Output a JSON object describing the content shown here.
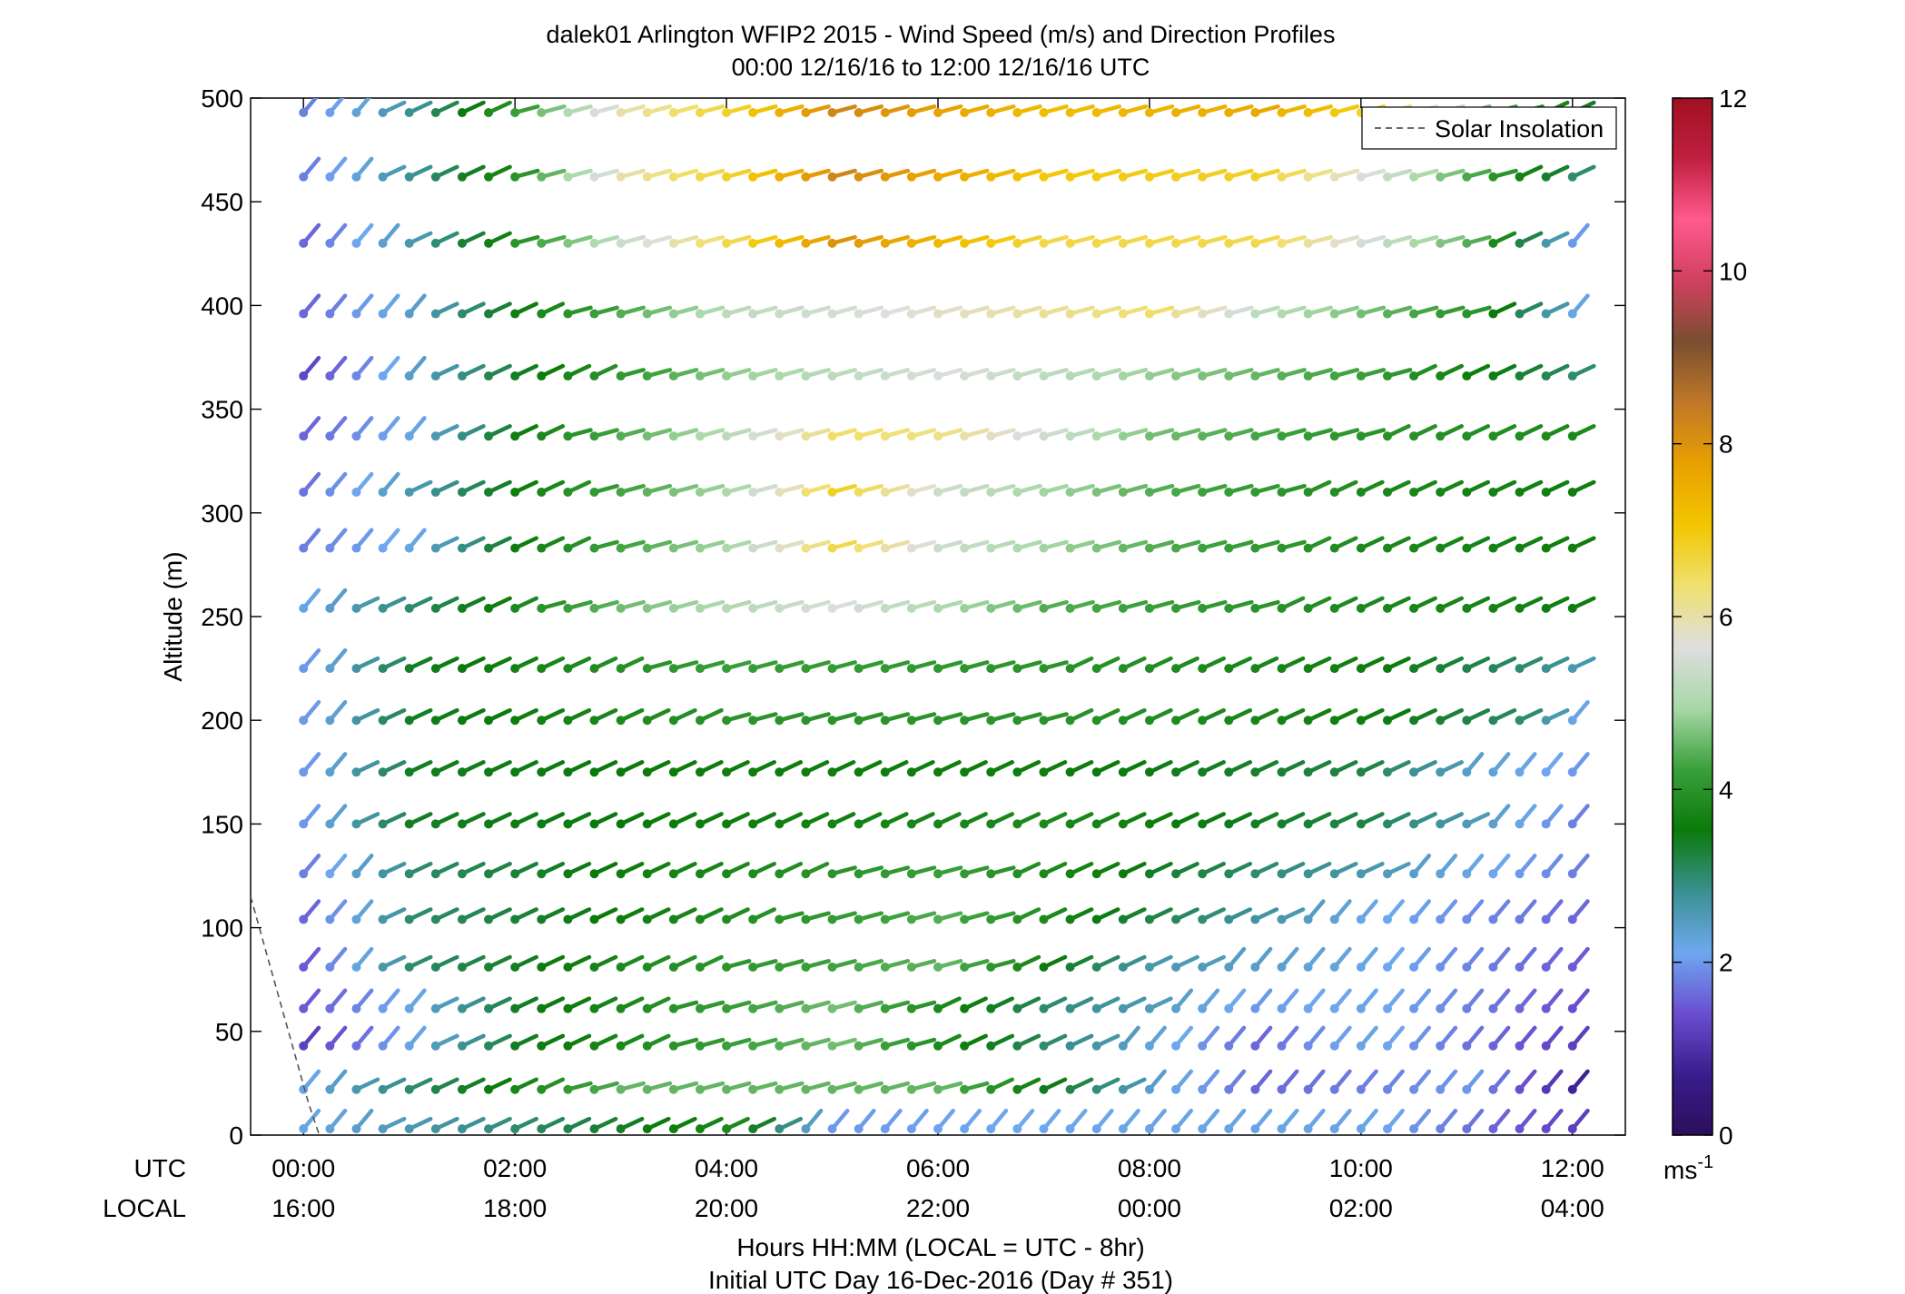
{
  "chart_data": {
    "type": "wind-barb-profile",
    "title": "dalek01 Arlington WFIP2 2015 - Wind Speed (m/s) and Direction Profiles",
    "subtitle": "00:00 12/16/16 to 12:00 12/16/16  UTC",
    "ylabel": "Altitude (m)",
    "xlabel": "Hours HH:MM  (LOCAL = UTC - 8hr)",
    "xlabel2": "Initial UTC Day 16-Dec-2016 (Day # 351)",
    "row_label_utc": "UTC",
    "row_label_local": "LOCAL",
    "xlim_hours": [
      -0.5,
      12.5
    ],
    "ylim": [
      0,
      500
    ],
    "yticks": [
      0,
      50,
      100,
      150,
      200,
      250,
      300,
      350,
      400,
      450,
      500
    ],
    "xticks_utc": [
      "00:00",
      "02:00",
      "04:00",
      "06:00",
      "08:00",
      "10:00",
      "12:00"
    ],
    "xticks_local": [
      "16:00",
      "18:00",
      "20:00",
      "22:00",
      "00:00",
      "02:00",
      "04:00"
    ],
    "legend": {
      "label": "Solar Insolation",
      "placement": "top-right"
    },
    "colorbar": {
      "min": 0,
      "max": 12,
      "ticks": [
        0,
        2,
        4,
        6,
        8,
        10,
        12
      ],
      "unit_base": "ms",
      "unit_exp": "-1",
      "colors": [
        "#2b0f5c",
        "#3a1c8c",
        "#6a4fd0",
        "#6ea8f0",
        "#3a9090",
        "#0a7a0a",
        "#3aa03a",
        "#a8d8a8",
        "#dedede",
        "#f0e070",
        "#f2c600",
        "#e8a000",
        "#c07828",
        "#7a4e30",
        "#d04060",
        "#ff5a8c",
        "#c02040",
        "#a01020"
      ]
    },
    "solar_insolation_line": [
      [
        -0.5,
        115
      ],
      [
        0.05,
        15
      ],
      [
        0.15,
        0
      ]
    ],
    "heights": [
      3,
      22,
      43,
      61,
      81,
      104,
      126,
      150,
      175,
      200,
      225,
      254,
      283,
      310,
      337,
      366,
      396,
      430,
      462,
      493
    ],
    "times_hours": [
      0.0,
      0.25,
      0.5,
      0.75,
      1.0,
      1.25,
      1.5,
      1.75,
      2.0,
      2.25,
      2.5,
      2.75,
      3.0,
      3.25,
      3.5,
      3.75,
      4.0,
      4.25,
      4.5,
      4.75,
      5.0,
      5.25,
      5.5,
      5.75,
      6.0,
      6.25,
      6.5,
      6.75,
      7.0,
      7.25,
      7.5,
      7.75,
      8.0,
      8.25,
      8.5,
      8.75,
      9.0,
      9.25,
      9.5,
      9.75,
      10.0,
      10.25,
      10.5,
      10.75,
      11.0,
      11.25,
      11.5,
      11.75,
      12.0
    ],
    "speed_profiles": [
      {
        "height": 3,
        "speed_knots_ms": [
          [
            0,
            2.2
          ],
          [
            4,
            3.8
          ],
          [
            5,
            2
          ],
          [
            8,
            2.2
          ],
          [
            10,
            2.2
          ],
          [
            12,
            1.2
          ]
        ]
      },
      {
        "height": 22,
        "speed_knots_ms": [
          [
            0,
            2.2
          ],
          [
            1,
            3
          ],
          [
            3,
            4.5
          ],
          [
            6,
            4.5
          ],
          [
            8,
            2.4
          ],
          [
            9,
            1.6
          ],
          [
            11,
            2
          ],
          [
            12,
            0.8
          ]
        ]
      },
      {
        "height": 43,
        "speed_knots_ms": [
          [
            0,
            1.2
          ],
          [
            1,
            2.2
          ],
          [
            2,
            3.4
          ],
          [
            5,
            4.6
          ],
          [
            7,
            3
          ],
          [
            9,
            1.6
          ],
          [
            10,
            2.2
          ],
          [
            12,
            1.2
          ]
        ]
      },
      {
        "height": 61,
        "speed_knots_ms": [
          [
            0,
            1.5
          ],
          [
            1,
            2.2
          ],
          [
            2,
            3.4
          ],
          [
            5,
            4.6
          ],
          [
            7,
            3
          ],
          [
            9,
            2
          ],
          [
            10,
            2.2
          ],
          [
            12,
            1.4
          ]
        ]
      },
      {
        "height": 81,
        "speed_knots_ms": [
          [
            0,
            1.5
          ],
          [
            1,
            3
          ],
          [
            3,
            3.8
          ],
          [
            6,
            4.5
          ],
          [
            8,
            2.6
          ],
          [
            10,
            2.2
          ],
          [
            12,
            1.5
          ]
        ]
      },
      {
        "height": 104,
        "speed_knots_ms": [
          [
            0,
            1.6
          ],
          [
            1,
            3
          ],
          [
            3,
            3.6
          ],
          [
            6,
            4.4
          ],
          [
            8,
            3.2
          ],
          [
            10,
            2.2
          ],
          [
            12,
            1.6
          ]
        ]
      },
      {
        "height": 126,
        "speed_knots_ms": [
          [
            0,
            1.8
          ],
          [
            1,
            3
          ],
          [
            3,
            3.6
          ],
          [
            6,
            4.2
          ],
          [
            9,
            3
          ],
          [
            11,
            2.2
          ],
          [
            12,
            1.8
          ]
        ]
      },
      {
        "height": 150,
        "speed_knots_ms": [
          [
            0,
            2
          ],
          [
            1,
            3.4
          ],
          [
            4,
            3.6
          ],
          [
            7,
            3.8
          ],
          [
            10,
            3.2
          ],
          [
            11.5,
            2.2
          ],
          [
            12,
            1.8
          ]
        ]
      },
      {
        "height": 175,
        "speed_knots_ms": [
          [
            0,
            2
          ],
          [
            1,
            3.4
          ],
          [
            4,
            3.6
          ],
          [
            7,
            3.6
          ],
          [
            10,
            3.2
          ],
          [
            11,
            2.4
          ],
          [
            12,
            2
          ]
        ]
      },
      {
        "height": 200,
        "speed_knots_ms": [
          [
            0,
            2
          ],
          [
            1,
            3.4
          ],
          [
            4,
            4
          ],
          [
            7,
            4
          ],
          [
            10,
            3.6
          ],
          [
            11.5,
            3
          ],
          [
            12,
            2.2
          ]
        ]
      },
      {
        "height": 225,
        "speed_knots_ms": [
          [
            0,
            2
          ],
          [
            1,
            3.4
          ],
          [
            4,
            4.2
          ],
          [
            7,
            4
          ],
          [
            10,
            3.6
          ],
          [
            11.5,
            3
          ],
          [
            12,
            2.6
          ]
        ]
      },
      {
        "height": 254,
        "speed_knots_ms": [
          [
            0,
            2.2
          ],
          [
            1,
            3
          ],
          [
            3,
            4.6
          ],
          [
            5,
            5.6
          ],
          [
            7,
            4.4
          ],
          [
            10,
            3.8
          ],
          [
            12,
            3.6
          ]
        ]
      },
      {
        "height": 283,
        "speed_knots_ms": [
          [
            0,
            1.8
          ],
          [
            1,
            2.2
          ],
          [
            2,
            3.6
          ],
          [
            4,
            5
          ],
          [
            5,
            6.6
          ],
          [
            6,
            5.4
          ],
          [
            8,
            4.4
          ],
          [
            10,
            3.8
          ],
          [
            12,
            3.6
          ]
        ]
      },
      {
        "height": 310,
        "speed_knots_ms": [
          [
            0,
            1.7
          ],
          [
            1,
            2.6
          ],
          [
            2,
            3.6
          ],
          [
            4,
            5
          ],
          [
            5,
            6.8
          ],
          [
            6,
            5.4
          ],
          [
            8,
            4.4
          ],
          [
            10,
            3.8
          ],
          [
            12,
            3.6
          ]
        ]
      },
      {
        "height": 337,
        "speed_knots_ms": [
          [
            0,
            1.6
          ],
          [
            1,
            2.2
          ],
          [
            2,
            3.6
          ],
          [
            4,
            5.2
          ],
          [
            5,
            6.4
          ],
          [
            6,
            6.2
          ],
          [
            8,
            4.6
          ],
          [
            10,
            4
          ],
          [
            12,
            3.8
          ]
        ]
      },
      {
        "height": 366,
        "speed_knots_ms": [
          [
            0,
            1.3
          ],
          [
            1,
            2.4
          ],
          [
            2,
            3.4
          ],
          [
            4,
            4.8
          ],
          [
            6,
            5.6
          ],
          [
            8,
            4.8
          ],
          [
            10,
            4.2
          ],
          [
            12,
            3
          ]
        ]
      },
      {
        "height": 396,
        "speed_knots_ms": [
          [
            0,
            1.6
          ],
          [
            1,
            2.4
          ],
          [
            2,
            3.6
          ],
          [
            4,
            5.2
          ],
          [
            6,
            5.8
          ],
          [
            8,
            6.4
          ],
          [
            9,
            5.2
          ],
          [
            11,
            4
          ],
          [
            12,
            2.2
          ]
        ]
      },
      {
        "height": 430,
        "speed_knots_ms": [
          [
            0,
            1.6
          ],
          [
            1,
            2.6
          ],
          [
            2,
            4
          ],
          [
            3,
            5.4
          ],
          [
            4,
            6.6
          ],
          [
            5,
            8
          ],
          [
            7,
            6.6
          ],
          [
            9,
            6.6
          ],
          [
            11,
            4.4
          ],
          [
            12,
            2
          ]
        ]
      },
      {
        "height": 462,
        "speed_knots_ms": [
          [
            0,
            1.8
          ],
          [
            1,
            2.8
          ],
          [
            2,
            4
          ],
          [
            3,
            6
          ],
          [
            4,
            6.8
          ],
          [
            5,
            8.2
          ],
          [
            7,
            7
          ],
          [
            9,
            6.8
          ],
          [
            10.5,
            5
          ],
          [
            12,
            3
          ]
        ]
      },
      {
        "height": 493,
        "speed_knots_ms": [
          [
            0,
            1.8
          ],
          [
            1,
            2.8
          ],
          [
            2,
            4.2
          ],
          [
            3,
            6
          ],
          [
            4,
            6.8
          ],
          [
            5,
            8.2
          ],
          [
            7,
            7.2
          ],
          [
            9,
            7.6
          ],
          [
            10,
            6.8
          ],
          [
            11,
            4.6
          ],
          [
            12,
            3.4
          ]
        ]
      }
    ]
  }
}
